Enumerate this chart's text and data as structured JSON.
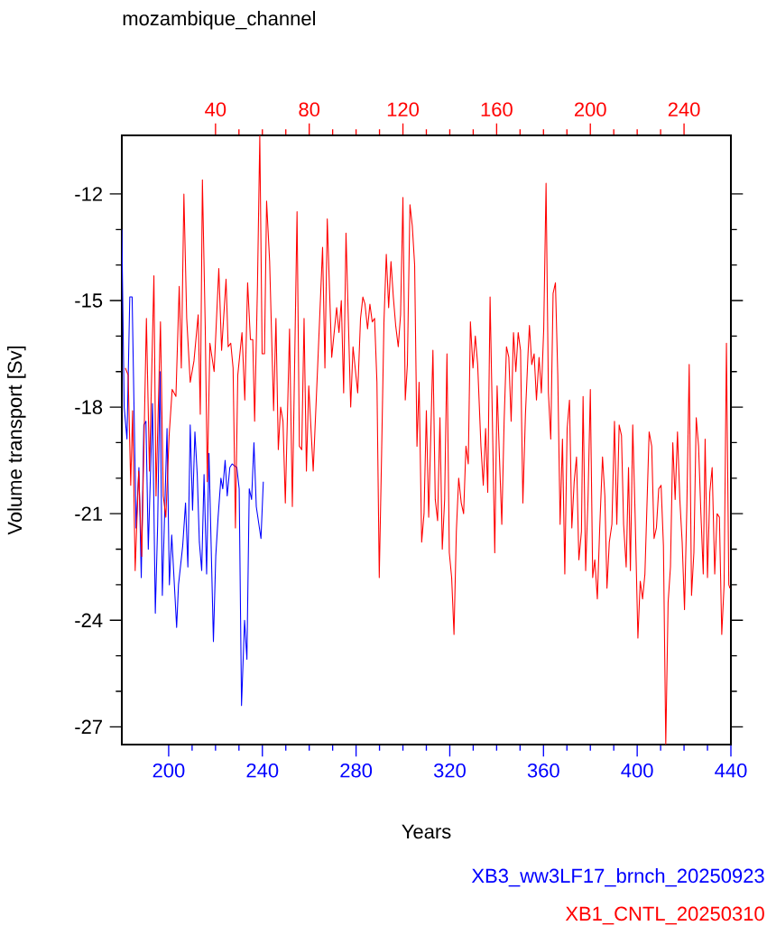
{
  "chart_data": {
    "type": "line",
    "title": "mozambique_channel",
    "xlabel": "Years",
    "ylabel": "Volume transport [Sv]",
    "xlim": [
      180,
      440
    ],
    "xticks": [
      200,
      240,
      280,
      320,
      360,
      400,
      440
    ],
    "x2lim": [
      0,
      260
    ],
    "x2ticks": [
      40,
      80,
      120,
      160,
      200,
      240
    ],
    "ylim": [
      -27.5,
      -10.35
    ],
    "yticks": [
      -12,
      -15,
      -18,
      -21,
      -24,
      -27
    ],
    "legend": "bottom right",
    "series": [
      {
        "name": "XB3_ww3LF17_brnch_20250923",
        "color": "#0000ff",
        "x": [
          180.0,
          181.0,
          182.2,
          183.4,
          184.4,
          186.1,
          187.3,
          188.3,
          189.4,
          190.3,
          191.3,
          193.1,
          194.3,
          195.3,
          196.3,
          197.3,
          199.3,
          200.3,
          201.3,
          203.4,
          204.2,
          206.0,
          207.2,
          208.2,
          209.2,
          210.2,
          211.2,
          212.2,
          213.1,
          214.1,
          215.1,
          216.2,
          217.2,
          219.1,
          220.1,
          221.1,
          222.3,
          223.1,
          224.1,
          225.0,
          226.1,
          227.1,
          229.1,
          230.1,
          231.1,
          232.4,
          233.4,
          234.4,
          235.4,
          236.4,
          237.4,
          239.4,
          240.4
        ],
        "values": [
          -13.0,
          -18.0,
          -18.9,
          -14.9,
          -14.9,
          -21.4,
          -19.7,
          -22.8,
          -18.5,
          -18.4,
          -22.0,
          -17.9,
          -23.8,
          -21.3,
          -17.0,
          -23.3,
          -18.6,
          -23.0,
          -21.6,
          -24.2,
          -23.0,
          -21.9,
          -20.7,
          -22.5,
          -18.5,
          -20.9,
          -18.7,
          -19.9,
          -21.8,
          -22.6,
          -19.9,
          -22.7,
          -19.3,
          -24.6,
          -22.2,
          -21.1,
          -20.0,
          -20.3,
          -19.5,
          -20.5,
          -19.7,
          -19.6,
          -19.7,
          -20.3,
          -26.4,
          -24.0,
          -25.1,
          -20.3,
          -20.6,
          -19.0,
          -20.8,
          -21.7,
          -20.1
        ]
      },
      {
        "name": "XB1_CNTL_20250310",
        "color": "#ff0000",
        "axis": "x2",
        "x": [
          1.5,
          2.7,
          3.8,
          4.6,
          5.7,
          7.2,
          8.5,
          10.5,
          11.8,
          13.7,
          14.6,
          16.5,
          17.7,
          18.8,
          20.2,
          21.5,
          23.1,
          24.5,
          25.4,
          26.5,
          27.7,
          29.2,
          30.8,
          32.6,
          33.5,
          34.4,
          35.6,
          36.5,
          37.6,
          39.4,
          41.4,
          42.6,
          44.5,
          45.4,
          46.5,
          47.5,
          48.5,
          49.5,
          51.3,
          52.5,
          53.7,
          54.9,
          55.9,
          56.7,
          57.9,
          58.9,
          59.9,
          60.9,
          61.8,
          63.1,
          64.8,
          65.8,
          66.8,
          67.8,
          68.8,
          69.8,
          71.6,
          72.8,
          74.8,
          75.8,
          76.8,
          77.8,
          78.8,
          79.8,
          81.7,
          83.7,
          85.7,
          86.7,
          87.7,
          89.6,
          91.7,
          92.7,
          93.7,
          94.7,
          95.7,
          97.7,
          98.7,
          100.7,
          101.9,
          102.9,
          103.8,
          104.9,
          105.9,
          106.9,
          107.9,
          108.9,
          109.9,
          110.9,
          111.9,
          112.9,
          113.9,
          114.9,
          115.9,
          116.9,
          118.0,
          119.0,
          120.0,
          121.0,
          121.9,
          123.0,
          124.0,
          125.0,
          126.0,
          126.9,
          128.0,
          129.0,
          130.0,
          131.0,
          132.8,
          133.8,
          134.8,
          135.8,
          136.8,
          137.8,
          138.8,
          139.8,
          140.8,
          141.8,
          142.8,
          143.8,
          144.9,
          145.9,
          146.9,
          147.9,
          148.8,
          149.9,
          150.9,
          151.9,
          153.3,
          154.3,
          155.3,
          156.2,
          157.2,
          158.2,
          159.2,
          160.2,
          161.2,
          162.2,
          163.2,
          164.2,
          165.2,
          166.2,
          167.2,
          168.2,
          169.2,
          170.2,
          171.2,
          172.3,
          173.4,
          174.0,
          175.0,
          176.0,
          177.0,
          178.1,
          179.1,
          180.1,
          181.1,
          182.1,
          183.1,
          184.1,
          185.1,
          186.1,
          187.1,
          188.1,
          189.1,
          190.1,
          191.1,
          192.1,
          193.1,
          194.1,
          195.1,
          196.2,
          196.9,
          198.0,
          199.0,
          200.0,
          201.0,
          201.9,
          203.0,
          204.0,
          205.2,
          206.2,
          207.1,
          208.1,
          209.2,
          210.3,
          211.3,
          212.3,
          213.3,
          214.2,
          215.3,
          216.3,
          217.1,
          218.1,
          219.1,
          220.3,
          221.3,
          222.3,
          223.3,
          225.1,
          226.2,
          227.2,
          228.2,
          229.2,
          230.2,
          231.2,
          232.2,
          233.2,
          234.2,
          235.2,
          236.2,
          237.2,
          238.2,
          239.2,
          240.2,
          241.2,
          242.2,
          243.2,
          244.2,
          245.2,
          246.2,
          247.2,
          248.2,
          249.0,
          250.0,
          251.0,
          252.0,
          253.1,
          254.1,
          255.1,
          256.1,
          257.1,
          258.1,
          259.1,
          259.6
        ],
        "values": [
          -16.9,
          -17.1,
          -20.2,
          -18.1,
          -22.6,
          -19.8,
          -22.2,
          -15.5,
          -19.8,
          -14.3,
          -20.5,
          -15.6,
          -20.5,
          -21.1,
          -18.8,
          -17.5,
          -17.7,
          -14.6,
          -16.9,
          -12.0,
          -15.5,
          -17.3,
          -16.7,
          -15.4,
          -18.2,
          -11.6,
          -15.7,
          -20.1,
          -16.2,
          -17.0,
          -14.1,
          -16.4,
          -14.4,
          -16.3,
          -16.2,
          -16.9,
          -21.4,
          -17.1,
          -15.9,
          -17.8,
          -14.5,
          -16.1,
          -16.1,
          -18.4,
          -14.6,
          -10.35,
          -16.5,
          -16.5,
          -12.2,
          -13.9,
          -18.1,
          -15.5,
          -19.2,
          -18.0,
          -18.4,
          -20.7,
          -15.8,
          -20.8,
          -12.5,
          -19.1,
          -19.2,
          -15.5,
          -19.8,
          -17.4,
          -19.8,
          -16.7,
          -13.5,
          -16.9,
          -12.7,
          -16.6,
          -15.2,
          -15.9,
          -15.0,
          -17.6,
          -13.1,
          -18.0,
          -16.3,
          -17.6,
          -15.5,
          -14.9,
          -15.1,
          -15.8,
          -15.1,
          -15.6,
          -15.5,
          -17.3,
          -22.8,
          -19.3,
          -15.6,
          -13.7,
          -15.2,
          -13.9,
          -14.9,
          -15.7,
          -16.3,
          -15.4,
          -12.1,
          -17.8,
          -16.8,
          -12.3,
          -12.9,
          -14.0,
          -19.1,
          -17.3,
          -21.8,
          -21.0,
          -18.1,
          -21.1,
          -16.4,
          -20.6,
          -21.2,
          -18.3,
          -22.0,
          -20.6,
          -16.5,
          -22.1,
          -22.8,
          -24.4,
          -21.5,
          -20.0,
          -20.7,
          -21.0,
          -19.1,
          -19.6,
          -15.6,
          -16.9,
          -16.0,
          -16.8,
          -19.1,
          -20.2,
          -18.6,
          -20.4,
          -14.9,
          -18.4,
          -22.1,
          -17.4,
          -19.4,
          -21.3,
          -18.4,
          -16.3,
          -16.6,
          -18.4,
          -15.9,
          -17.0,
          -15.9,
          -16.4,
          -20.7,
          -18.2,
          -16.5,
          -15.7,
          -16.8,
          -16.5,
          -17.8,
          -16.6,
          -17.6,
          -15.8,
          -11.7,
          -17.6,
          -18.9,
          -14.8,
          -14.5,
          -17.1,
          -21.3,
          -18.9,
          -22.7,
          -18.6,
          -17.8,
          -21.4,
          -20.1,
          -19.4,
          -22.3,
          -21.5,
          -17.7,
          -22.6,
          -20.6,
          -17.5,
          -22.8,
          -22.3,
          -23.4,
          -21.4,
          -19.4,
          -20.5,
          -23.1,
          -21.8,
          -21.3,
          -18.4,
          -21.3,
          -18.5,
          -18.8,
          -21.3,
          -22.5,
          -19.7,
          -22.6,
          -18.5,
          -21.0,
          -24.5,
          -22.9,
          -23.4,
          -22.7,
          -18.7,
          -19.1,
          -21.7,
          -21.4,
          -20.3,
          -20.2,
          -21.9,
          -27.5,
          -23.5,
          -22.5,
          -19.0,
          -20.6,
          -18.7,
          -20.6,
          -21.8,
          -23.7,
          -20.8,
          -16.8,
          -23.3,
          -22.1,
          -18.3,
          -19.1,
          -21.0,
          -22.7,
          -18.9,
          -22.8,
          -20.4,
          -19.7,
          -22.7,
          -21.0,
          -21.1,
          -24.4,
          -23.0,
          -16.2,
          -23.0,
          -23.1
        ]
      }
    ]
  }
}
